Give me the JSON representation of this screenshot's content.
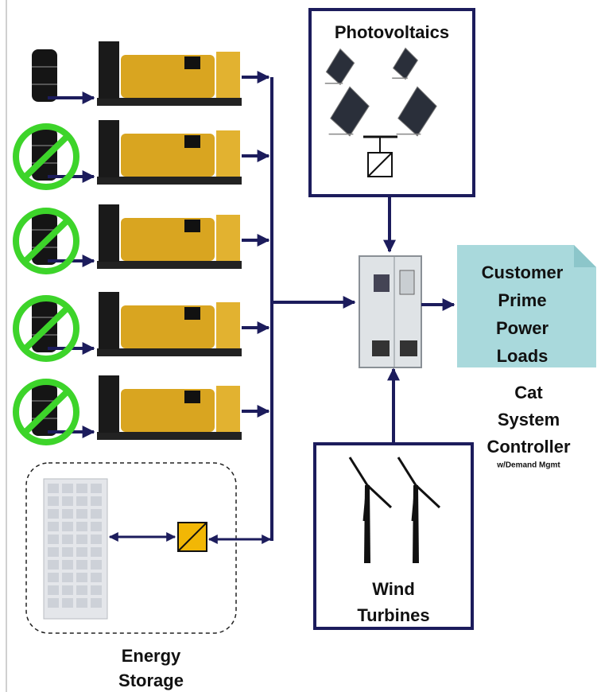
{
  "photovoltaics": {
    "title": "Photovoltaics"
  },
  "customer_loads": {
    "lines": [
      "Customer",
      "Prime",
      "Power",
      "Loads"
    ]
  },
  "controller": {
    "lines": [
      "Cat",
      "System",
      "Controller"
    ],
    "note": "w/Demand Mgmt"
  },
  "wind_turbines": {
    "lines": [
      "Wind",
      "Turbines"
    ]
  },
  "energy_storage": {
    "lines": [
      "Energy",
      "Storage"
    ]
  }
}
